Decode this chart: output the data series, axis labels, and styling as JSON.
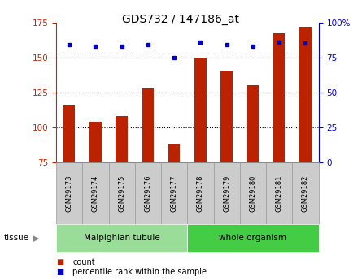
{
  "title": "GDS732 / 147186_at",
  "categories": [
    "GSM29173",
    "GSM29174",
    "GSM29175",
    "GSM29176",
    "GSM29177",
    "GSM29178",
    "GSM29179",
    "GSM29180",
    "GSM29181",
    "GSM29182"
  ],
  "bar_values": [
    116,
    104,
    108,
    128,
    88,
    149,
    140,
    130,
    167,
    172
  ],
  "dot_values": [
    84,
    83,
    83,
    84,
    75,
    86,
    84,
    83,
    86,
    85
  ],
  "ylim_left": [
    75,
    175
  ],
  "ylim_right": [
    0,
    100
  ],
  "yticks_left": [
    75,
    100,
    125,
    150,
    175
  ],
  "yticks_right": [
    0,
    25,
    50,
    75,
    100
  ],
  "bar_color": "#bb2200",
  "dot_color": "#0000cc",
  "bar_bottom": 75,
  "tissue_groups": [
    {
      "label": "Malpighian tubule",
      "start": 0,
      "end": 5,
      "color": "#99dd99"
    },
    {
      "label": "whole organism",
      "start": 5,
      "end": 10,
      "color": "#44cc44"
    }
  ],
  "legend_bar_label": "count",
  "legend_dot_label": "percentile rank within the sample",
  "left_axis_color": "#cc2200",
  "right_axis_color": "#0000cc",
  "grid_color": "#888888",
  "bg_color": "#ffffff",
  "tick_box_color": "#cccccc",
  "tick_box_edge_color": "#999999"
}
